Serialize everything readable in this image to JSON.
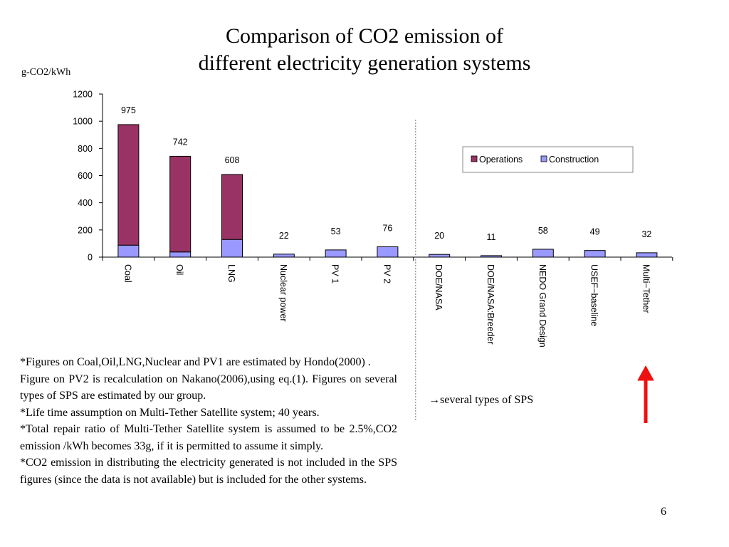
{
  "slide": {
    "title_line1": "Comparison of  CO2 emission of",
    "title_line2": "different electricity generation systems",
    "unit_label": "g-CO2/kWh",
    "notes": [
      "*Figures on Coal,Oil,LNG,Nuclear and PV1 are estimated by Hondo(2000) .",
      "Figure on PV2 is recalculation on Nakano(2006),using eq.(1). Figures on several types of SPS are estimated by our group.",
      "*Life time assumption on Multi-Tether Satellite system; 40 years.",
      "*Total repair ratio of Multi-Tether Satellite system is assumed to be 2.5%,CO2 emission /kWh becomes 33g, if it is permitted to assume it simply.",
      "*CO2 emission in distributing the electricity generated is not included in the SPS figures (since the data is not available) but is included for the other systems."
    ],
    "sps_note": "→several types of  SPS",
    "page_number": "6",
    "arrow_color": "#ee1111"
  },
  "chart_data": {
    "type": "bar",
    "stacked": true,
    "categories": [
      "Coal",
      "Oil",
      "LNG",
      "Nuclear power",
      "PV 1",
      "PV 2",
      "DOE/NASA",
      "DOE/NASA:Breeder",
      "NEDO Grand Design",
      "USEF−baseline",
      "Multi−Tether"
    ],
    "series": [
      {
        "name": "Construction",
        "color": "#9999ff",
        "values": [
          88,
          38,
          130,
          22,
          53,
          76,
          20,
          11,
          58,
          49,
          32
        ]
      },
      {
        "name": "Operations",
        "color": "#993366",
        "values": [
          887,
          704,
          478,
          0,
          0,
          0,
          0,
          0,
          0,
          0,
          0
        ]
      }
    ],
    "totals": [
      "975",
      "742",
      "608",
      "22",
      "53",
      "76",
      "20",
      "11",
      "58",
      "49",
      "32"
    ],
    "ylim": [
      0,
      1200
    ],
    "yticks": [
      "0",
      "200",
      "400",
      "600",
      "800",
      "1000",
      "1200"
    ],
    "ytick_values": [
      0,
      200,
      400,
      600,
      800,
      1000,
      1200
    ],
    "legend_position": "top-right",
    "legend": [
      "Operations",
      "Construction"
    ],
    "legend_colors": [
      "#993366",
      "#9999ff"
    ],
    "separator_after_category": "PV 2",
    "grid": false
  }
}
